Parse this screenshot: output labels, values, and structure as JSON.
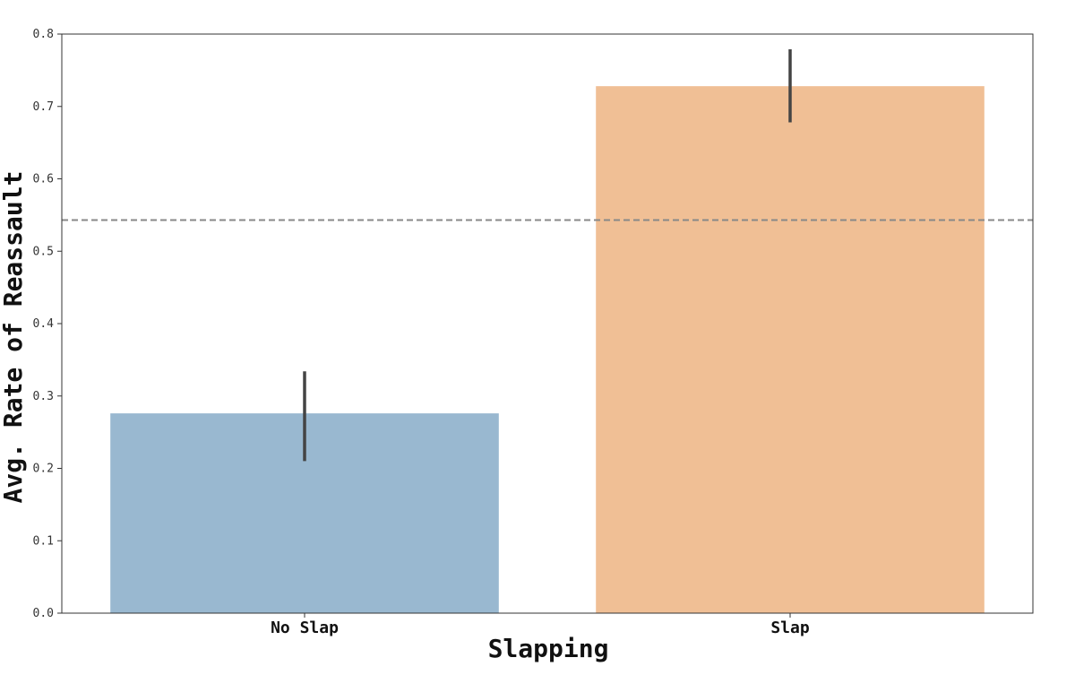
{
  "chart_data": {
    "type": "bar",
    "title": "",
    "xlabel": "Slapping",
    "ylabel": "Avg. Rate of Reassault",
    "categories": [
      "No Slap",
      "Slap"
    ],
    "values": [
      0.276,
      0.728
    ],
    "error_bars": [
      {
        "low": 0.21,
        "high": 0.334
      },
      {
        "low": 0.678,
        "high": 0.779
      }
    ],
    "ylim": [
      0.0,
      0.8
    ],
    "yticks": [
      "0.0",
      "0.1",
      "0.2",
      "0.3",
      "0.4",
      "0.5",
      "0.6",
      "0.7",
      "0.8"
    ],
    "reference_line": {
      "y": 0.543,
      "style": "dashed",
      "color": "#888888"
    },
    "colors": [
      "#99b8d0",
      "#f0bf95"
    ],
    "errorbar_color": "#444444",
    "grid": false
  }
}
